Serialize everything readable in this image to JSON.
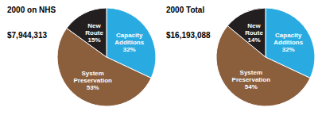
{
  "chart_data": [
    {
      "type": "pie",
      "title": "2000 on NHS",
      "subtitle": "$7,944,313",
      "values": [
        32,
        53,
        15
      ],
      "value_labels": [
        "Capacity\nAdditions\n32%",
        "System\nPreservation\n53%",
        "New\nRoute\n15%"
      ],
      "colors": [
        "#29ABE2",
        "#8B5E3C",
        "#231F20"
      ],
      "data_labels": true
    },
    {
      "type": "pie",
      "title": "2000 Total",
      "subtitle": "$16,193,088",
      "values": [
        32,
        54,
        14
      ],
      "value_labels": [
        "Capacity\nAdditions\n32%",
        "System\nPreservation\n54%",
        "New\nRoute\n14%"
      ],
      "colors": [
        "#29ABE2",
        "#8B5E3C",
        "#231F20"
      ],
      "data_labels": true
    }
  ]
}
